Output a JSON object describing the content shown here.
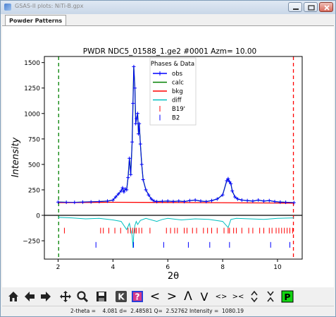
{
  "window": {
    "title": "GSAS-II plots: NiTi-B.gpx"
  },
  "tabs": [
    {
      "label": "Powder Patterns"
    }
  ],
  "toolbar": {
    "buttons": [
      {
        "icon": "home-icon"
      },
      {
        "icon": "back-arrow-icon"
      },
      {
        "icon": "forward-arrow-icon"
      },
      {
        "icon": "pan-icon"
      },
      {
        "icon": "zoom-icon"
      },
      {
        "icon": "save-icon"
      },
      {
        "icon": "k-icon",
        "label": "K"
      },
      {
        "icon": "help-icon",
        "label": "?"
      },
      {
        "icon": "shift-left-icon",
        "label": "<"
      },
      {
        "icon": "shift-right-icon",
        "label": ">"
      },
      {
        "icon": "shift-up-icon",
        "label": "Λ"
      },
      {
        "icon": "shift-down-icon",
        "label": "V"
      },
      {
        "icon": "expand-icon",
        "label": "<>"
      },
      {
        "icon": "contract-icon",
        "label": "><"
      },
      {
        "icon": "expand-vertical-icon"
      },
      {
        "icon": "contract-vertical-icon"
      },
      {
        "icon": "p-icon",
        "label": "P"
      }
    ]
  },
  "status": {
    "text": "2-theta =    4.081 d=  2.48581 Q=  2.52762 Intensity =  1080.19"
  },
  "chart_data": {
    "type": "line",
    "title": "PWDR NDC5_01588_1.ge2 #0001 Azm= 10.00",
    "xlabel": "2θ",
    "ylabel": "Intensity",
    "xlim": [
      1.5,
      10.9
    ],
    "ylim": [
      -430,
      1560
    ],
    "xticks": [
      2,
      4,
      6,
      8,
      10
    ],
    "yticks": [
      -250,
      0,
      250,
      500,
      750,
      1000,
      1250,
      1500
    ],
    "legend": {
      "title": "Phases & Data",
      "placement": "top-center",
      "entries": [
        "obs",
        "calc",
        "bkg",
        "diff",
        "B19'",
        "B2"
      ]
    },
    "colors": {
      "obs": "#0000ff",
      "calc": "#008000",
      "bkg": "#ff0000",
      "diff": "#00bfbf",
      "B19'": "#ff0000",
      "B2": "#0000ff"
    },
    "limits": {
      "lower": 2.02,
      "upper": 10.58
    },
    "series": [
      {
        "name": "bkg",
        "x": [
          2.0,
          4.0,
          6.0,
          8.0,
          10.6
        ],
        "y": [
          125,
          128,
          126,
          124,
          120
        ]
      },
      {
        "name": "obs",
        "x": [
          2.0,
          2.3,
          2.6,
          2.9,
          3.2,
          3.5,
          3.8,
          4.0,
          4.1,
          4.2,
          4.3,
          4.35,
          4.4,
          4.45,
          4.5,
          4.55,
          4.6,
          4.65,
          4.7,
          4.73,
          4.76,
          4.8,
          4.83,
          4.86,
          4.9,
          4.93,
          4.96,
          5.0,
          5.05,
          5.1,
          5.2,
          5.3,
          5.4,
          5.5,
          5.6,
          5.8,
          6.0,
          6.2,
          6.4,
          6.6,
          6.8,
          7.0,
          7.2,
          7.4,
          7.6,
          7.8,
          8.0,
          8.15,
          8.2,
          8.25,
          8.3,
          8.35,
          8.45,
          8.55,
          8.7,
          8.9,
          9.1,
          9.3,
          9.5,
          9.7,
          9.9,
          10.1,
          10.3,
          10.6
        ],
        "y": [
          130,
          128,
          127,
          130,
          132,
          135,
          140,
          150,
          180,
          210,
          240,
          270,
          230,
          260,
          250,
          370,
          560,
          400,
          720,
          1100,
          1460,
          1250,
          900,
          950,
          1000,
          800,
          900,
          700,
          500,
          350,
          250,
          200,
          160,
          140,
          135,
          138,
          140,
          136,
          140,
          135,
          145,
          150,
          140,
          135,
          145,
          160,
          200,
          340,
          360,
          330,
          310,
          240,
          180,
          160,
          150,
          145,
          140,
          150,
          140,
          145,
          135,
          130,
          128,
          125
        ]
      },
      {
        "name": "diff",
        "x": [
          2.0,
          2.5,
          3.0,
          3.5,
          4.0,
          4.3,
          4.5,
          4.6,
          4.7,
          4.73,
          4.76,
          4.8,
          4.85,
          4.9,
          5.0,
          5.2,
          5.6,
          5.8,
          6.0,
          6.5,
          7.0,
          7.5,
          8.0,
          8.2,
          8.3,
          8.5,
          9.0,
          9.5,
          10.0,
          10.6
        ],
        "y": [
          -20,
          -25,
          -35,
          -30,
          -45,
          -60,
          -140,
          -80,
          -200,
          -320,
          -180,
          -100,
          -60,
          -90,
          -50,
          -30,
          -60,
          -40,
          -30,
          -45,
          -35,
          -40,
          -60,
          -120,
          -40,
          -30,
          -35,
          -40,
          -30,
          -25
        ]
      }
    ],
    "reflections": {
      "B19'": [
        2.23,
        3.55,
        3.65,
        3.85,
        4.07,
        4.28,
        4.55,
        4.64,
        4.72,
        4.8,
        4.85,
        4.95,
        5.05,
        5.35,
        5.95,
        6.1,
        6.25,
        6.35,
        6.6,
        6.7,
        6.9,
        7.05,
        7.3,
        7.45,
        7.6,
        7.8,
        8.05,
        8.2,
        8.25,
        8.4,
        8.5,
        8.7,
        8.95,
        9.1,
        9.35,
        9.5,
        9.7,
        9.8,
        9.95,
        10.05,
        10.15,
        10.25,
        10.35,
        10.45,
        10.55
      ],
      "B2": [
        3.38,
        4.75,
        5.85,
        6.75,
        7.53,
        8.25,
        9.75,
        10.45
      ]
    }
  }
}
